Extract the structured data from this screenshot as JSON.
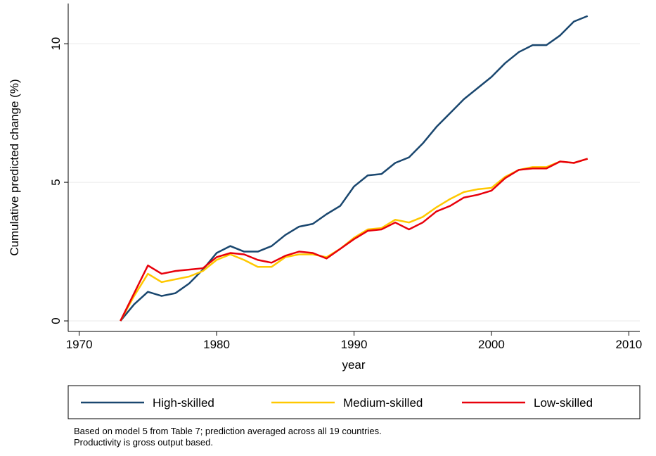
{
  "chart_data": {
    "type": "line",
    "x": [
      1973,
      1974,
      1975,
      1976,
      1977,
      1978,
      1979,
      1980,
      1981,
      1982,
      1983,
      1984,
      1985,
      1986,
      1987,
      1988,
      1989,
      1990,
      1991,
      1992,
      1993,
      1994,
      1995,
      1996,
      1997,
      1998,
      1999,
      2000,
      2001,
      2002,
      2003,
      2004,
      2005,
      2006,
      2007
    ],
    "series": [
      {
        "name": "High-skilled",
        "color": "#1a476f",
        "values": [
          0,
          0.6,
          1.05,
          0.9,
          1.0,
          1.35,
          1.85,
          2.45,
          2.7,
          2.5,
          2.5,
          2.7,
          3.1,
          3.4,
          3.5,
          3.85,
          4.15,
          4.85,
          5.25,
          5.3,
          5.7,
          5.9,
          6.4,
          7.0,
          7.5,
          8.0,
          8.4,
          8.8,
          9.3,
          9.7,
          9.95,
          9.95,
          10.3,
          10.8,
          11.0
        ]
      },
      {
        "name": "Medium-skilled",
        "color": "#ffc800",
        "values": [
          0,
          0.9,
          1.7,
          1.4,
          1.5,
          1.6,
          1.8,
          2.2,
          2.4,
          2.2,
          1.95,
          1.95,
          2.3,
          2.4,
          2.4,
          2.3,
          2.6,
          3.0,
          3.3,
          3.35,
          3.65,
          3.55,
          3.75,
          4.1,
          4.4,
          4.65,
          4.75,
          4.8,
          5.2,
          5.45,
          5.55,
          5.55,
          5.75,
          5.7,
          5.85
        ]
      },
      {
        "name": "Low-skilled",
        "color": "#e8000b",
        "values": [
          0,
          1.0,
          2.0,
          1.7,
          1.8,
          1.85,
          1.9,
          2.3,
          2.45,
          2.4,
          2.2,
          2.1,
          2.35,
          2.5,
          2.45,
          2.25,
          2.6,
          2.95,
          3.25,
          3.3,
          3.55,
          3.3,
          3.55,
          3.95,
          4.15,
          4.45,
          4.55,
          4.7,
          5.15,
          5.45,
          5.5,
          5.5,
          5.75,
          5.7,
          5.85
        ]
      }
    ],
    "x_label": "year",
    "y_label": "Cumulative predicted change (%)",
    "xlim": [
      1969.2,
      2010.8
    ],
    "ylim": [
      -0.38,
      11.45
    ],
    "xticks": [
      1970,
      1980,
      1990,
      2000,
      2010
    ],
    "yticks": [
      0,
      5,
      10
    ],
    "grid": true,
    "legend_position": "bottom",
    "notes": [
      "Based on model 5 from Table 7; prediction averaged across all 19 countries.",
      "Productivity is gross output based."
    ]
  }
}
